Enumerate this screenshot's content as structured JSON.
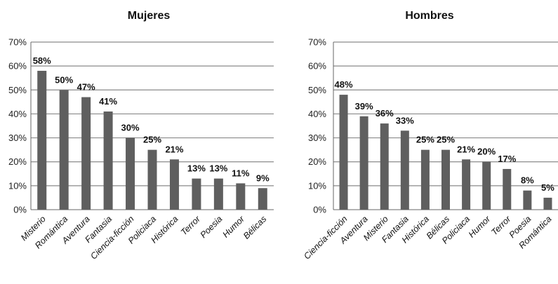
{
  "chart_data": [
    {
      "type": "bar",
      "title": "Mujeres",
      "categories": [
        "Misterio",
        "Romántica",
        "Aventura",
        "Fantasia",
        "Ciencia-ficción",
        "Policiaca",
        "Histórica",
        "Terror",
        "Poesia",
        "Humor",
        "Bélicas"
      ],
      "values": [
        58,
        50,
        47,
        41,
        30,
        25,
        21,
        13,
        13,
        11,
        9
      ],
      "data_labels": [
        "58%",
        "50%",
        "47%",
        "41%",
        "30%",
        "25%",
        "21%",
        "13%",
        "13%",
        "11%",
        "9%"
      ],
      "ylim": [
        0,
        70
      ],
      "yticks": [
        "0%",
        "10%",
        "20%",
        "30%",
        "40%",
        "50%",
        "60%",
        "70%"
      ],
      "xlabel": "",
      "ylabel": "",
      "grid": true,
      "bar_color": "#5f5f5f"
    },
    {
      "type": "bar",
      "title": "Hombres",
      "categories": [
        "Ciencia-ficción",
        "Aventura",
        "Misterio",
        "Fantasia",
        "Histórica",
        "Bélicas",
        "Policiaca",
        "Humor",
        "Terror",
        "Poesia",
        "Romántica"
      ],
      "values": [
        48,
        39,
        36,
        33,
        25,
        25,
        21,
        20,
        17,
        8,
        5
      ],
      "data_labels": [
        "48%",
        "39%",
        "36%",
        "33%",
        "25%",
        "25%",
        "21%",
        "20%",
        "17%",
        "8%",
        "5%"
      ],
      "ylim": [
        0,
        70
      ],
      "yticks": [
        "0%",
        "10%",
        "20%",
        "30%",
        "40%",
        "50%",
        "60%",
        "70%"
      ],
      "xlabel": "",
      "ylabel": "",
      "grid": true,
      "bar_color": "#5f5f5f"
    }
  ]
}
